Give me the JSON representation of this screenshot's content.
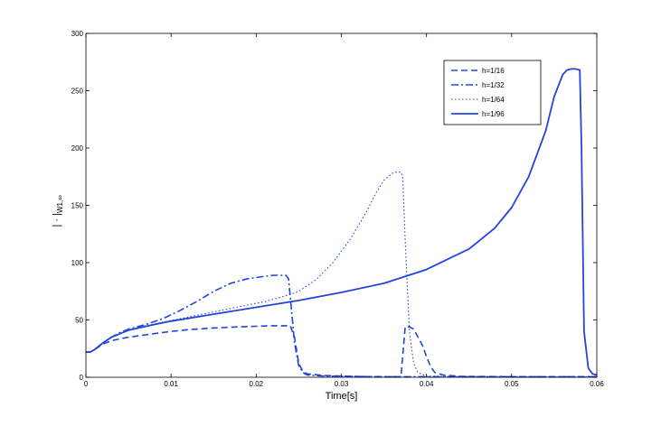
{
  "chart_data": {
    "type": "line",
    "title": "",
    "xlabel": "Time[s]",
    "ylabel": "| · |W1,∞",
    "ylabel_main": "| · |",
    "ylabel_sub": "W1,∞",
    "xlim": [
      0,
      0.06
    ],
    "ylim": [
      0,
      300
    ],
    "xticks": [
      0,
      0.01,
      0.02,
      0.03,
      0.04,
      0.05,
      0.06
    ],
    "xtick_labels": [
      "0",
      "0.01",
      "0.02",
      "0.03",
      "0.04",
      "0.05",
      "0.06"
    ],
    "yticks": [
      0,
      50,
      100,
      150,
      200,
      250,
      300
    ],
    "ytick_labels": [
      "0",
      "50",
      "100",
      "150",
      "200",
      "250",
      "300"
    ],
    "grid": false,
    "legend_position": "top-right",
    "line_color": "#2244dd",
    "series": [
      {
        "name": "h=1/16",
        "style": "dashed",
        "x": [
          0,
          0.0005,
          0.001,
          0.002,
          0.003,
          0.005,
          0.008,
          0.01,
          0.012,
          0.015,
          0.018,
          0.02,
          0.022,
          0.024,
          0.0245,
          0.025,
          0.0255,
          0.026,
          0.028,
          0.03,
          0.032,
          0.035,
          0.037,
          0.0375,
          0.038,
          0.0385,
          0.039,
          0.0395,
          0.04,
          0.0405,
          0.041,
          0.042,
          0.044,
          0.05,
          0.055,
          0.06
        ],
        "y": [
          22,
          22,
          24,
          29,
          32,
          35,
          38,
          40,
          41.5,
          43,
          44,
          44.5,
          45,
          45,
          35,
          12,
          5,
          3,
          1.5,
          1,
          0.6,
          0.5,
          0.5,
          44,
          44,
          42,
          35,
          28,
          18,
          9,
          4,
          2,
          0.8,
          0.5,
          0.5,
          0.5
        ]
      },
      {
        "name": "h=1/32",
        "style": "dashdot",
        "x": [
          0,
          0.0005,
          0.001,
          0.002,
          0.003,
          0.004,
          0.005,
          0.007,
          0.009,
          0.011,
          0.013,
          0.015,
          0.017,
          0.019,
          0.021,
          0.022,
          0.023,
          0.0235,
          0.0238,
          0.024,
          0.0245,
          0.025,
          0.0255,
          0.026,
          0.028,
          0.03,
          0.035,
          0.04,
          0.05,
          0.06
        ],
        "y": [
          22,
          22,
          24,
          30,
          35,
          39,
          42,
          46,
          51,
          58,
          66,
          75,
          82,
          86,
          88,
          89,
          89,
          89,
          86,
          70,
          30,
          10,
          4,
          2,
          1,
          0.8,
          0.5,
          0.5,
          0.5,
          0.5
        ]
      },
      {
        "name": "h=1/64",
        "style": "dotted",
        "x": [
          0,
          0.0005,
          0.001,
          0.002,
          0.003,
          0.005,
          0.007,
          0.009,
          0.011,
          0.013,
          0.015,
          0.017,
          0.019,
          0.021,
          0.023,
          0.025,
          0.027,
          0.029,
          0.031,
          0.033,
          0.034,
          0.035,
          0.036,
          0.0365,
          0.037,
          0.0372,
          0.0375,
          0.038,
          0.0385,
          0.039,
          0.04,
          0.045,
          0.05,
          0.06
        ],
        "y": [
          22,
          22,
          24,
          30,
          35,
          41,
          45,
          48,
          51,
          54,
          57,
          60,
          63,
          66,
          70,
          75,
          85,
          100,
          120,
          145,
          160,
          172,
          178,
          179,
          179,
          175,
          120,
          40,
          12,
          4,
          1,
          0.5,
          0.5,
          0.5
        ]
      },
      {
        "name": "h=1/96",
        "style": "solid",
        "x": [
          0,
          0.0005,
          0.001,
          0.002,
          0.003,
          0.005,
          0.008,
          0.01,
          0.015,
          0.02,
          0.025,
          0.03,
          0.035,
          0.04,
          0.045,
          0.048,
          0.05,
          0.052,
          0.054,
          0.055,
          0.056,
          0.0565,
          0.057,
          0.0575,
          0.058,
          0.0582,
          0.0585,
          0.059,
          0.0595,
          0.06
        ],
        "y": [
          22,
          22,
          24,
          30,
          35,
          41,
          46,
          49,
          55,
          61,
          67,
          74,
          82,
          94,
          112,
          130,
          148,
          175,
          215,
          245,
          264,
          268,
          269,
          269,
          268,
          200,
          40,
          8,
          3,
          2
        ]
      }
    ]
  }
}
